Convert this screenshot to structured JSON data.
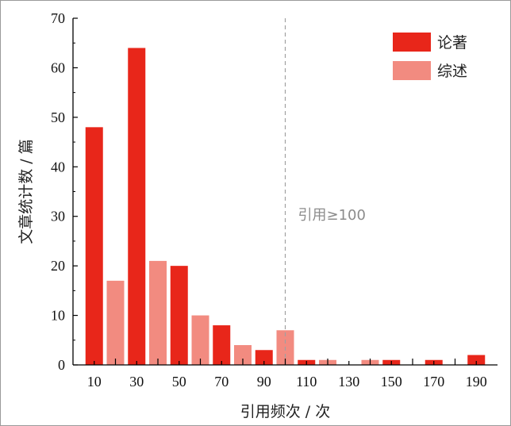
{
  "chart_data": {
    "type": "bar",
    "xlabel": "引用频次 / 次",
    "ylabel": "文章统计数 / 篇",
    "x_ticks": [
      10,
      30,
      50,
      70,
      90,
      110,
      130,
      150,
      170,
      190
    ],
    "y_ticks": [
      0,
      10,
      20,
      30,
      40,
      50,
      60,
      70
    ],
    "ylim": [
      0,
      70
    ],
    "xlim": [
      0,
      200
    ],
    "grid": false,
    "legend_position": "top-right",
    "series": [
      {
        "name": "论著",
        "color": "#e8261a",
        "points": [
          {
            "x": 10,
            "y": 48
          },
          {
            "x": 30,
            "y": 64
          },
          {
            "x": 50,
            "y": 20
          },
          {
            "x": 70,
            "y": 8
          },
          {
            "x": 90,
            "y": 3
          },
          {
            "x": 110,
            "y": 1
          },
          {
            "x": 150,
            "y": 1
          },
          {
            "x": 170,
            "y": 1
          },
          {
            "x": 190,
            "y": 2
          }
        ]
      },
      {
        "name": "综述",
        "color": "#f28b80",
        "points": [
          {
            "x": 20,
            "y": 17
          },
          {
            "x": 40,
            "y": 21
          },
          {
            "x": 60,
            "y": 10
          },
          {
            "x": 80,
            "y": 4
          },
          {
            "x": 100,
            "y": 7
          },
          {
            "x": 120,
            "y": 1
          },
          {
            "x": 140,
            "y": 1
          }
        ]
      }
    ],
    "reference_line": {
      "x": 100,
      "style": "dashed",
      "color": "#a0a0a0"
    },
    "annotation": "引用≥100"
  }
}
